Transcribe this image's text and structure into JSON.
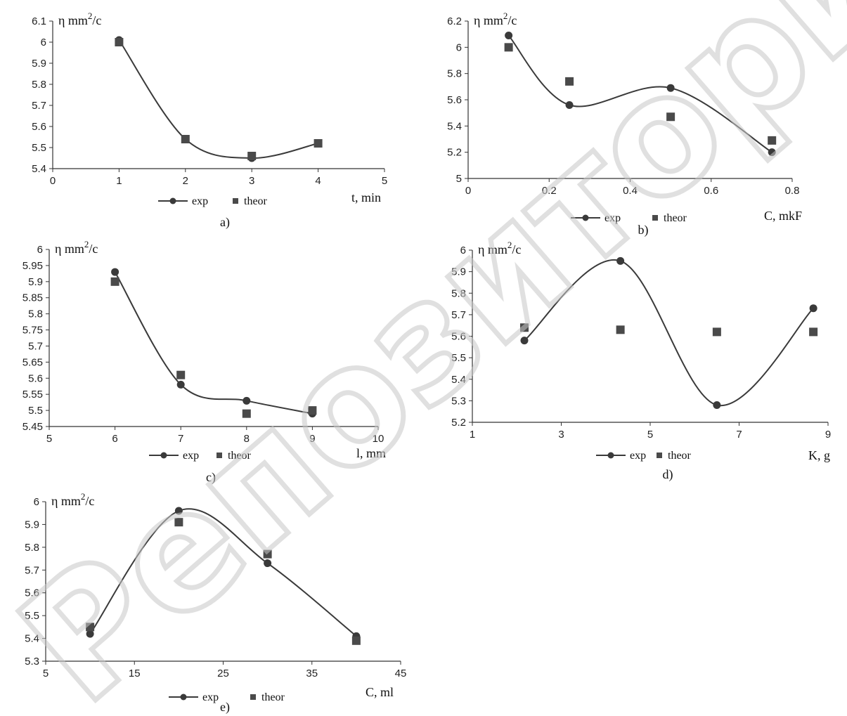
{
  "watermark": "Репозиторий Карп",
  "chart_data": [
    {
      "id": "a",
      "type": "line",
      "caption": "a)",
      "ylabel_main": "η mm",
      "ylabel_sup": "2",
      "ylabel_tail": "/c",
      "xlabel": "t, min",
      "xlim": [
        0,
        5
      ],
      "ylim": [
        5.4,
        6.1
      ],
      "xticks": [
        0,
        1,
        2,
        3,
        4,
        5
      ],
      "xtick_labels": [
        "0",
        "1",
        "2",
        "3",
        "4",
        "5"
      ],
      "yticks": [
        5.4,
        5.5,
        5.6,
        5.7,
        5.8,
        5.9,
        6.0,
        6.1
      ],
      "ytick_labels": [
        "5.4",
        "5.5",
        "5.6",
        "5.7",
        "5.8",
        "5.9",
        "6",
        "6.1"
      ],
      "legend": [
        "exp",
        "theor"
      ],
      "series": [
        {
          "name": "exp",
          "marker": "circle",
          "line": true,
          "x": [
            1,
            2,
            3,
            4
          ],
          "y": [
            6.01,
            5.54,
            5.45,
            5.52
          ]
        },
        {
          "name": "theor",
          "marker": "square",
          "line": false,
          "x": [
            1,
            2,
            3,
            4
          ],
          "y": [
            6.0,
            5.54,
            5.46,
            5.52
          ]
        }
      ]
    },
    {
      "id": "b",
      "type": "line",
      "caption": "b)",
      "ylabel_main": "η mm",
      "ylabel_sup": "2",
      "ylabel_tail": "/c",
      "xlabel": "C,  mkF",
      "xlim": [
        0,
        0.8
      ],
      "ylim": [
        5.0,
        6.2
      ],
      "xticks": [
        0,
        0.2,
        0.4,
        0.6,
        0.8
      ],
      "xtick_labels": [
        "0",
        "0.2",
        "0.4",
        "0.6",
        "0.8"
      ],
      "yticks": [
        5.0,
        5.2,
        5.4,
        5.6,
        5.8,
        6.0,
        6.2
      ],
      "ytick_labels": [
        "5",
        "5.2",
        "5.4",
        "5.6",
        "5.8",
        "6",
        "6.2"
      ],
      "legend": [
        "exp",
        "theor"
      ],
      "series": [
        {
          "name": "exp",
          "marker": "circle",
          "line": true,
          "x": [
            0.1,
            0.25,
            0.5,
            0.75
          ],
          "y": [
            6.09,
            5.56,
            5.69,
            5.2
          ]
        },
        {
          "name": "theor",
          "marker": "square",
          "line": false,
          "x": [
            0.1,
            0.25,
            0.5,
            0.75
          ],
          "y": [
            6.0,
            5.74,
            5.47,
            5.29
          ]
        }
      ]
    },
    {
      "id": "c",
      "type": "line",
      "caption": "c)",
      "ylabel_main": "η mm",
      "ylabel_sup": "2",
      "ylabel_tail": "/c",
      "xlabel": "l, mm",
      "xlim": [
        5,
        10
      ],
      "ylim": [
        5.45,
        6.0
      ],
      "xticks": [
        5,
        6,
        7,
        8,
        9,
        10
      ],
      "xtick_labels": [
        "5",
        "6",
        "7",
        "8",
        "9",
        "10"
      ],
      "yticks": [
        5.45,
        5.5,
        5.55,
        5.6,
        5.65,
        5.7,
        5.75,
        5.8,
        5.85,
        5.9,
        5.95,
        6.0
      ],
      "ytick_labels": [
        "5.45",
        "5.5",
        "5.55",
        "5.6",
        "5.65",
        "5.7",
        "5.75",
        "5.8",
        "5.85",
        "5.9",
        "5.95",
        "6"
      ],
      "legend": [
        "exp",
        "theor"
      ],
      "series": [
        {
          "name": "exp",
          "marker": "circle",
          "line": true,
          "x": [
            6,
            7,
            8,
            9
          ],
          "y": [
            5.93,
            5.58,
            5.53,
            5.49
          ]
        },
        {
          "name": "theor",
          "marker": "square",
          "line": false,
          "x": [
            6,
            7,
            8,
            9
          ],
          "y": [
            5.9,
            5.61,
            5.49,
            5.5
          ]
        }
      ]
    },
    {
      "id": "d",
      "type": "line",
      "caption": "d)",
      "ylabel_main": "η mm",
      "ylabel_sup": "2",
      "ylabel_tail": "/c",
      "xlabel": "K,  g",
      "xlim": [
        1,
        9
      ],
      "ylim": [
        5.2,
        6.0
      ],
      "xticks": [
        1,
        3,
        5,
        7,
        9
      ],
      "xtick_labels": [
        "1",
        "3",
        "5",
        "7",
        "9"
      ],
      "yticks": [
        5.2,
        5.3,
        5.4,
        5.5,
        5.6,
        5.7,
        5.8,
        5.9,
        6.0
      ],
      "ytick_labels": [
        "5.2",
        "5.3",
        "5.4",
        "5.5",
        "5.6",
        "5.7",
        "5.8",
        "5.9",
        "6"
      ],
      "legend": [
        "exp",
        "theor"
      ],
      "series": [
        {
          "name": "exp",
          "marker": "circle",
          "line": true,
          "x": [
            2.17,
            4.33,
            6.5,
            8.67
          ],
          "y": [
            5.58,
            5.95,
            5.28,
            5.73
          ]
        },
        {
          "name": "theor",
          "marker": "square",
          "line": false,
          "x": [
            2.17,
            4.33,
            6.5,
            8.67
          ],
          "y": [
            5.64,
            5.63,
            5.62,
            5.62
          ]
        }
      ]
    },
    {
      "id": "e",
      "type": "line",
      "caption": "e)",
      "ylabel_main": "η mm",
      "ylabel_sup": "2",
      "ylabel_tail": "/c",
      "xlabel": "C, ml",
      "xlim": [
        5,
        45
      ],
      "ylim": [
        5.3,
        6.0
      ],
      "xticks": [
        5,
        15,
        25,
        35,
        45
      ],
      "xtick_labels": [
        "5",
        "15",
        "25",
        "35",
        "45"
      ],
      "yticks": [
        5.3,
        5.4,
        5.5,
        5.6,
        5.7,
        5.8,
        5.9,
        6.0
      ],
      "ytick_labels": [
        "5.3",
        "5.4",
        "5.5",
        "5.6",
        "5.7",
        "5.8",
        "5.9",
        "6"
      ],
      "legend": [
        "exp",
        "theor"
      ],
      "series": [
        {
          "name": "exp",
          "marker": "circle",
          "line": true,
          "x": [
            10,
            20,
            30,
            40
          ],
          "y": [
            5.42,
            5.96,
            5.73,
            5.41
          ]
        },
        {
          "name": "theor",
          "marker": "square",
          "line": false,
          "x": [
            10,
            20,
            30,
            40
          ],
          "y": [
            5.45,
            5.91,
            5.77,
            5.39
          ]
        }
      ]
    }
  ]
}
